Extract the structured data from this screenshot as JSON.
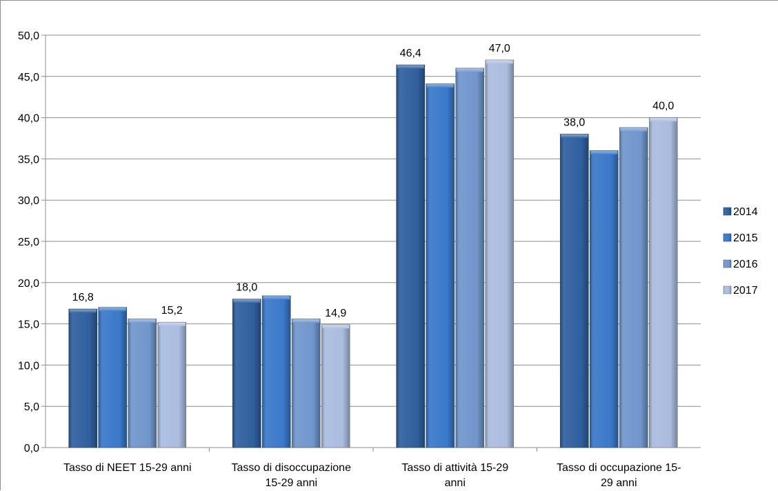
{
  "chart_data": {
    "type": "bar",
    "title": "",
    "xlabel": "",
    "ylabel": "",
    "ylim": [
      0,
      50
    ],
    "y_tick_step": 5,
    "y_tick_labels": [
      "0,0",
      "5,0",
      "10,0",
      "15,0",
      "20,0",
      "25,0",
      "30,0",
      "35,0",
      "40,0",
      "45,0",
      "50,0"
    ],
    "grid": true,
    "legend_position": "right",
    "categories": [
      [
        "Tasso di NEET 15-29 anni"
      ],
      [
        "Tasso di disoccupazione",
        "15-29 anni"
      ],
      [
        "Tasso di attività 15-29",
        "anni"
      ],
      [
        "Tasso di occupazione 15-",
        "29 anni"
      ]
    ],
    "series": [
      {
        "name": "2014",
        "color": "#2f5f9e",
        "values": [
          16.8,
          18.0,
          46.4,
          38.0
        ],
        "labels": [
          "16,8",
          "18,0",
          "46,4",
          "38,0"
        ]
      },
      {
        "name": "2015",
        "color": "#3a78c9",
        "values": [
          17.0,
          18.4,
          44.1,
          36.0
        ],
        "labels": [
          "",
          "",
          "",
          ""
        ]
      },
      {
        "name": "2016",
        "color": "#7096cc",
        "values": [
          15.6,
          15.6,
          46.0,
          38.8
        ],
        "labels": [
          "",
          "",
          "",
          ""
        ]
      },
      {
        "name": "2017",
        "color": "#aabcdf",
        "values": [
          15.2,
          14.9,
          47.0,
          40.0
        ],
        "labels": [
          "15,2",
          "14,9",
          "47,0",
          "40,0"
        ]
      }
    ]
  }
}
